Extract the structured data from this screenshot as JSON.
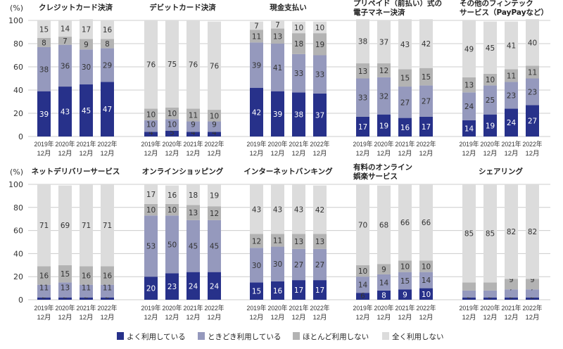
{
  "chart_data": [
    {
      "type": "bar",
      "stacked": true,
      "title": "クレジットカード決済",
      "categories": [
        "2019年12月",
        "2020年12月",
        "2021年12月",
        "2022年12月"
      ],
      "series": [
        {
          "name": "よく利用している",
          "values": [
            39,
            43,
            45,
            47
          ]
        },
        {
          "name": "ときどき利用している",
          "values": [
            38,
            36,
            30,
            29
          ]
        },
        {
          "name": "ほとんど利用しない",
          "values": [
            8,
            7,
            9,
            8
          ]
        },
        {
          "name": "全く利用しない",
          "values": [
            15,
            14,
            17,
            16
          ]
        }
      ]
    },
    {
      "type": "bar",
      "stacked": true,
      "title": "デビットカード決済",
      "categories": [
        "2019年12月",
        "2020年12月",
        "2021年12月",
        "2022年12月"
      ],
      "series": [
        {
          "name": "よく利用している",
          "values": [
            4,
            5,
            4,
            4
          ]
        },
        {
          "name": "ときどき利用している",
          "values": [
            10,
            10,
            9,
            9
          ]
        },
        {
          "name": "ほとんど利用しない",
          "values": [
            10,
            10,
            11,
            10
          ]
        },
        {
          "name": "全く利用しない",
          "values": [
            76,
            75,
            76,
            76
          ]
        }
      ]
    },
    {
      "type": "bar",
      "stacked": true,
      "title": "現金支払い",
      "categories": [
        "2019年12月",
        "2020年12月",
        "2021年12月",
        "2022年12月"
      ],
      "series": [
        {
          "name": "よく利用している",
          "values": [
            42,
            39,
            38,
            37
          ]
        },
        {
          "name": "ときどき利用している",
          "values": [
            39,
            41,
            33,
            33
          ]
        },
        {
          "name": "ほとんど利用しない",
          "values": [
            11,
            13,
            18,
            19
          ]
        },
        {
          "name": "全く利用しない",
          "values": [
            7,
            7,
            10,
            10
          ]
        }
      ]
    },
    {
      "type": "bar",
      "stacked": true,
      "title": "プリペイド（前払い）式の\n電子マネー決済",
      "categories": [
        "2019年12月",
        "2020年12月",
        "2021年12月",
        "2022年12月"
      ],
      "series": [
        {
          "name": "よく利用している",
          "values": [
            17,
            19,
            16,
            17
          ]
        },
        {
          "name": "ときどき利用している",
          "values": [
            33,
            32,
            27,
            27
          ]
        },
        {
          "name": "ほとんど利用しない",
          "values": [
            13,
            12,
            15,
            15
          ]
        },
        {
          "name": "全く利用しない",
          "values": [
            38,
            37,
            43,
            42
          ]
        }
      ]
    },
    {
      "type": "bar",
      "stacked": true,
      "title": "その他のフィンテック\nサービス（PayPayなど）",
      "categories": [
        "2019年12月",
        "2020年12月",
        "2021年12月",
        "2022年12月"
      ],
      "series": [
        {
          "name": "よく利用している",
          "values": [
            14,
            19,
            24,
            27
          ]
        },
        {
          "name": "ときどき利用している",
          "values": [
            24,
            25,
            23,
            23
          ]
        },
        {
          "name": "ほとんど利用しない",
          "values": [
            13,
            10,
            11,
            11
          ]
        },
        {
          "name": "全く利用しない",
          "values": [
            49,
            45,
            41,
            40
          ]
        }
      ]
    },
    {
      "type": "bar",
      "stacked": true,
      "title": "ネットデリバリーサービス",
      "categories": [
        "2019年12月",
        "2020年12月",
        "2021年12月",
        "2022年12月"
      ],
      "series": [
        {
          "name": "よく利用している",
          "values": [
            2,
            2,
            2,
            2
          ]
        },
        {
          "name": "ときどき利用している",
          "values": [
            11,
            13,
            11,
            11
          ]
        },
        {
          "name": "ほとんど利用しない",
          "values": [
            16,
            15,
            16,
            16
          ]
        },
        {
          "name": "全く利用しない",
          "values": [
            71,
            69,
            71,
            71
          ]
        }
      ]
    },
    {
      "type": "bar",
      "stacked": true,
      "title": "オンラインショッピング",
      "categories": [
        "2019年12月",
        "2020年12月",
        "2021年12月",
        "2022年12月"
      ],
      "series": [
        {
          "name": "よく利用している",
          "values": [
            20,
            23,
            24,
            24
          ]
        },
        {
          "name": "ときどき利用している",
          "values": [
            53,
            50,
            45,
            45
          ]
        },
        {
          "name": "ほとんど利用しない",
          "values": [
            10,
            10,
            13,
            12
          ]
        },
        {
          "name": "全く利用しない",
          "values": [
            17,
            16,
            18,
            19
          ]
        }
      ]
    },
    {
      "type": "bar",
      "stacked": true,
      "title": "インターネットバンキング",
      "categories": [
        "2019年12月",
        "2020年12月",
        "2021年12月",
        "2022年12月"
      ],
      "series": [
        {
          "name": "よく利用している",
          "values": [
            15,
            16,
            17,
            17
          ]
        },
        {
          "name": "ときどき利用している",
          "values": [
            30,
            30,
            27,
            27
          ]
        },
        {
          "name": "ほとんど利用しない",
          "values": [
            12,
            11,
            13,
            13
          ]
        },
        {
          "name": "全く利用しない",
          "values": [
            43,
            43,
            43,
            42
          ]
        }
      ]
    },
    {
      "type": "bar",
      "stacked": true,
      "title": "有料のオンライン\n娯楽サービス",
      "categories": [
        "2019年12月",
        "2020年12月",
        "2021年12月",
        "2022年12月"
      ],
      "series": [
        {
          "name": "よく利用している",
          "values": [
            6,
            8,
            9,
            10
          ]
        },
        {
          "name": "ときどき利用している",
          "values": [
            14,
            14,
            15,
            14
          ]
        },
        {
          "name": "ほとんど利用しない",
          "values": [
            10,
            9,
            10,
            10
          ]
        },
        {
          "name": "全く利用しない",
          "values": [
            70,
            68,
            66,
            66
          ]
        }
      ]
    },
    {
      "type": "bar",
      "stacked": true,
      "title": "シェアリング",
      "categories": [
        "2019年12月",
        "2020年12月",
        "2021年12月",
        "2022年12月"
      ],
      "series": [
        {
          "name": "よく利用している",
          "values": [
            2,
            2,
            2,
            2
          ]
        },
        {
          "name": "ときどき利用している",
          "values": [
            6,
            6,
            7,
            7
          ]
        },
        {
          "name": "ほとんど利用しない",
          "values": [
            7,
            7,
            9,
            9
          ]
        },
        {
          "name": "全く利用しない",
          "values": [
            85,
            85,
            82,
            82
          ]
        }
      ]
    }
  ],
  "axis": {
    "ylabel": "(%)",
    "yticks": [
      0,
      20,
      40,
      60,
      80,
      100
    ],
    "ylim": [
      0,
      100
    ],
    "grid": true
  },
  "legend": {
    "placement": "bottom",
    "items": [
      "よく利用している",
      "ときどき利用している",
      "ほとんど利用しない",
      "全く利用しない"
    ]
  },
  "colors": [
    "#27318a",
    "#9599bd",
    "#b3b3b3",
    "#dcdcdc"
  ]
}
